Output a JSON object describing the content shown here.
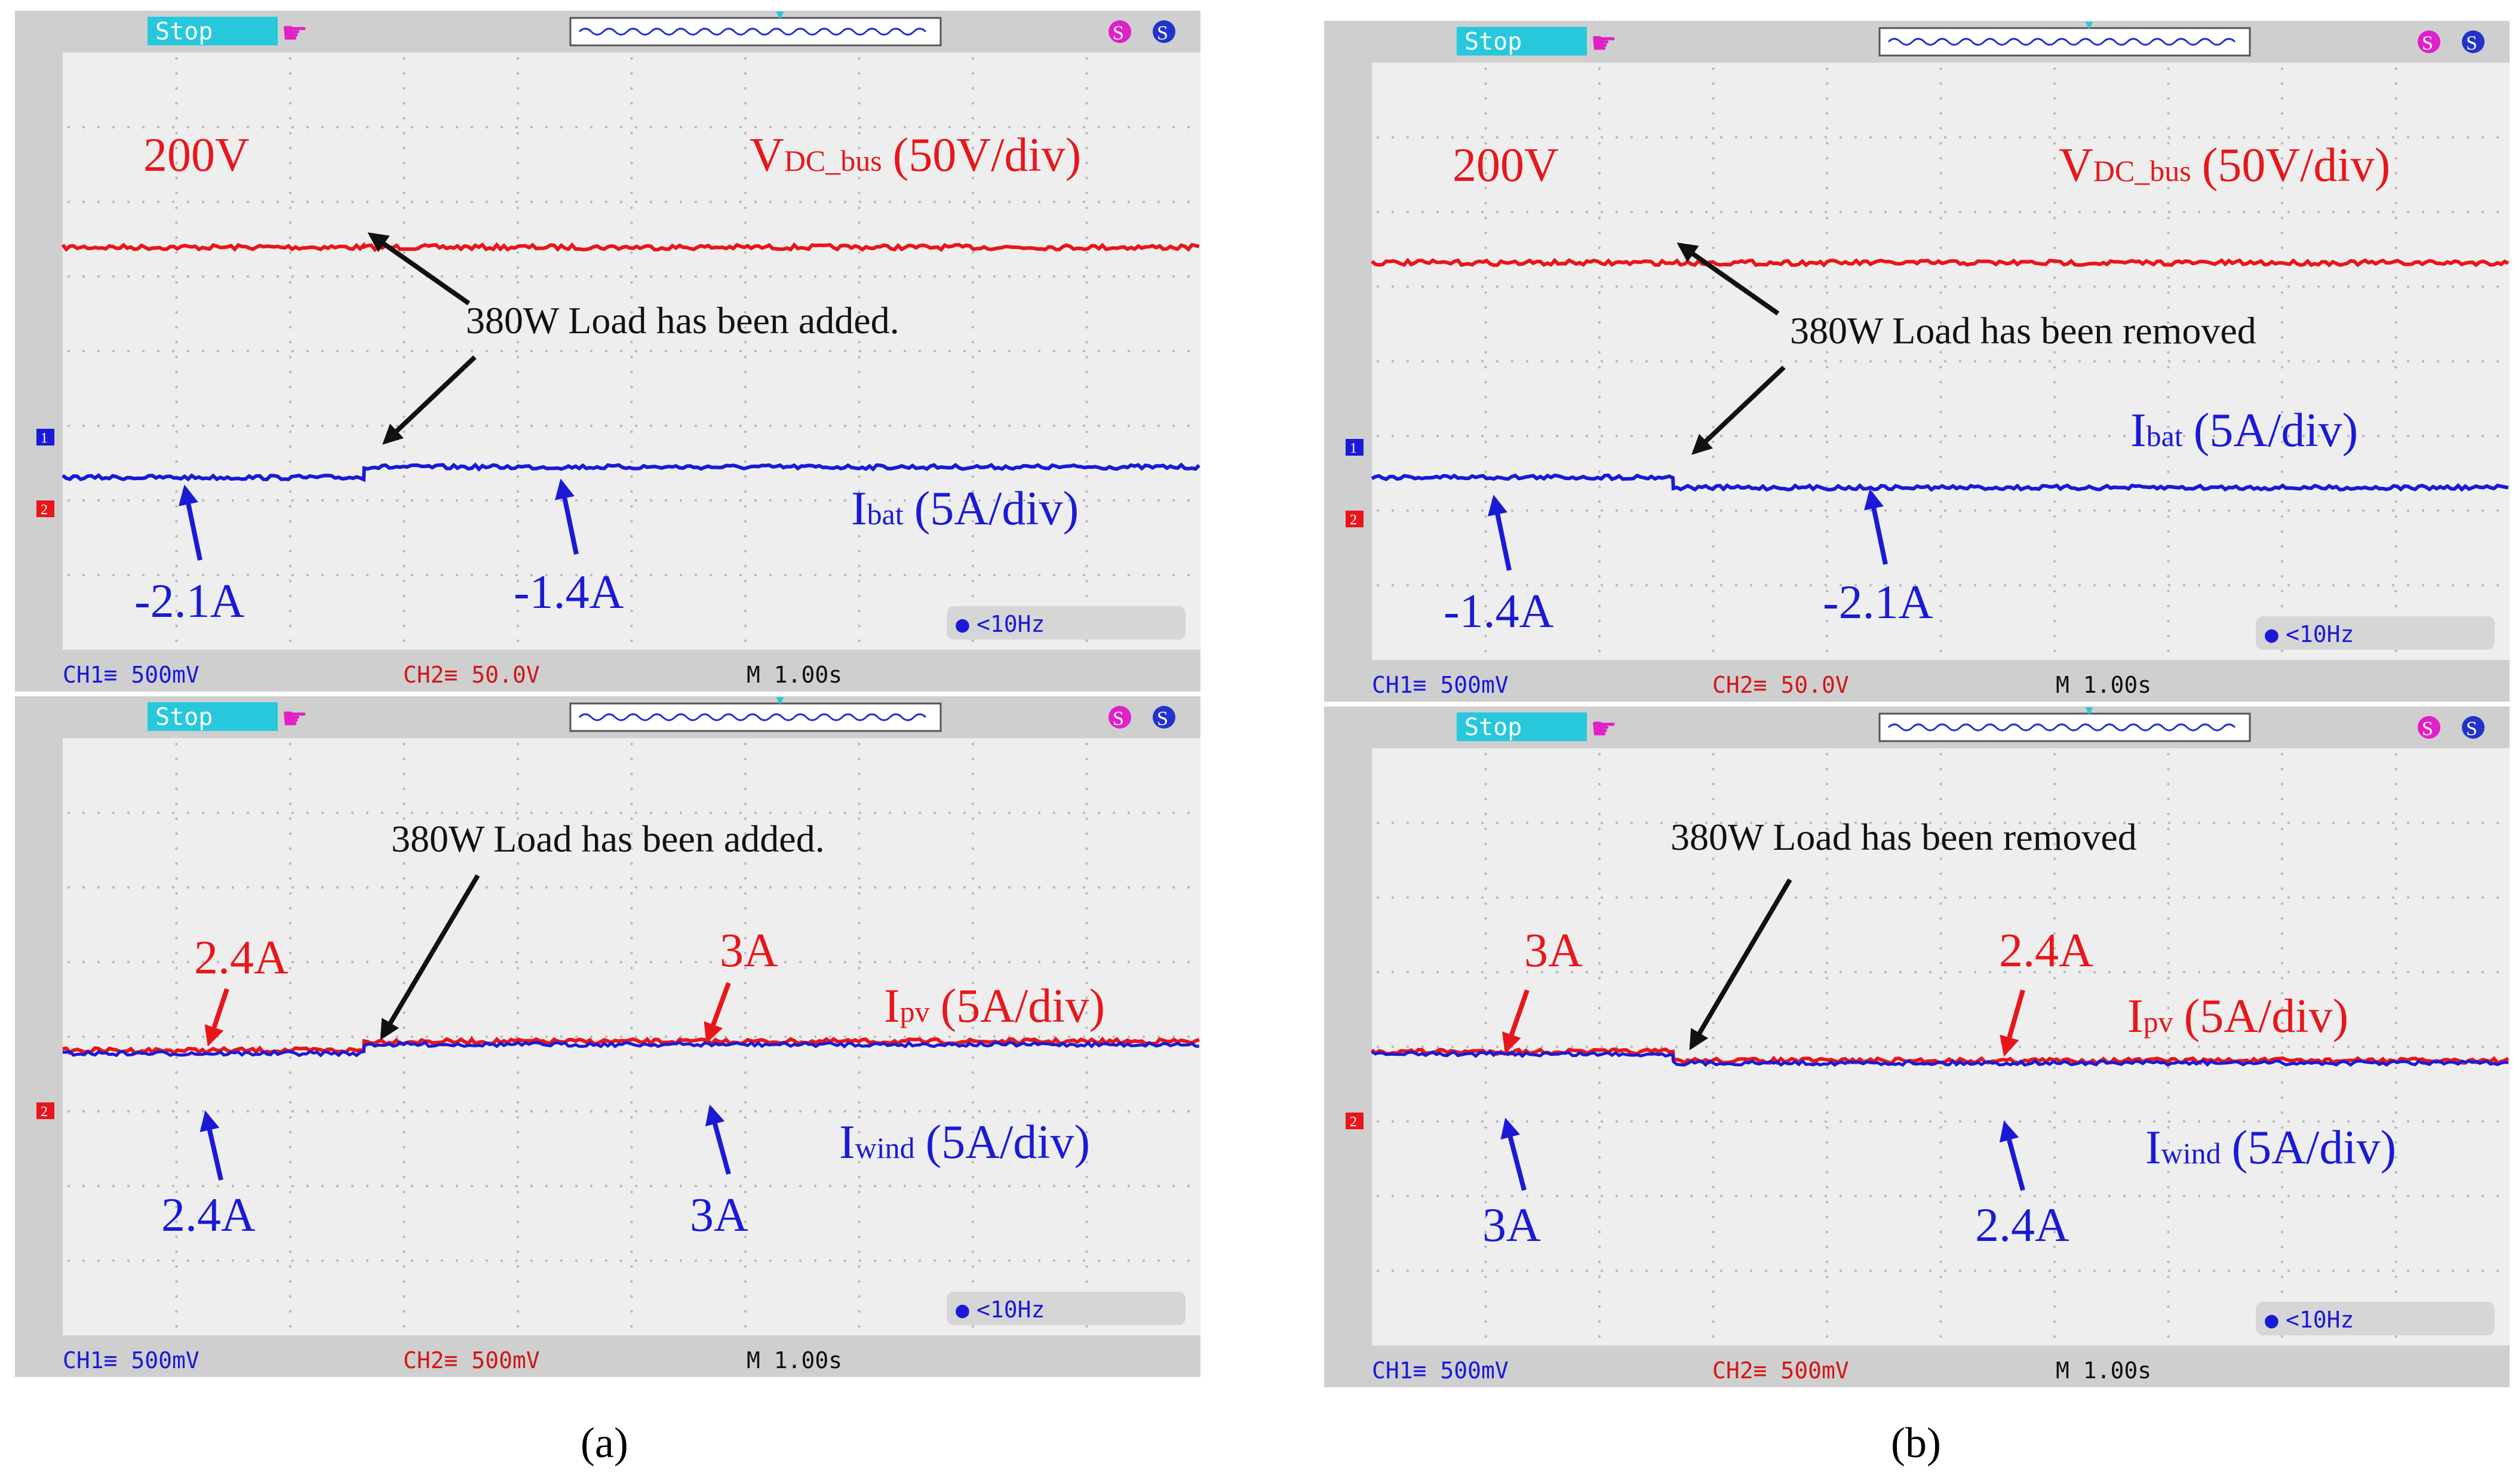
{
  "figure": {
    "panel_labels": [
      "(a)",
      "(b)"
    ],
    "scope_ui": {
      "status_label": "Stop",
      "meas_badge": "<10Hz",
      "timebase": "M 1.00s",
      "colors": {
        "ch_red": "#e8161b",
        "ch_blue": "#1a1ad6",
        "status_bg": "#27c8dc",
        "status_text": "#ffffff",
        "icon_magenta": "#e020c8",
        "grid_dot": "#b8b8b8",
        "screen_bg": "#eeeeee",
        "bezel_bg": "#cfcfcf",
        "footer_blue": "#1a1ad6",
        "footer_red": "#d01818",
        "footer_black": "#111111"
      }
    },
    "scopes": [
      {
        "id": "a-top",
        "footer": {
          "ch1": "CH1≡ 500mV",
          "ch2": "CH2≡ 50.0V",
          "time": "M 1.00s"
        },
        "annotations": {
          "level_label": "200V",
          "trace1_label_main": "V",
          "trace1_label_sub": "DC_bus",
          "trace1_label_scale": "(50V/div)",
          "event_text": "380W Load has been added.",
          "trace2_label_main": "I",
          "trace2_label_sub": "bat",
          "trace2_label_scale": "(5A/div)",
          "before_value": "-2.1A",
          "after_value": "-1.4A"
        }
      },
      {
        "id": "a-bottom",
        "footer": {
          "ch1": "CH1≡ 500mV",
          "ch2": "CH2≡ 500mV",
          "time": "M 1.00s"
        },
        "annotations": {
          "event_text": "380W Load has been added.",
          "trace1_label_main": "I",
          "trace1_label_sub": "pv",
          "trace1_label_scale": "(5A/div)",
          "trace2_label_main": "I",
          "trace2_label_sub": "wind",
          "trace2_label_scale": "(5A/div)",
          "red_before": "2.4A",
          "red_after": "3A",
          "blue_before": "2.4A",
          "blue_after": "3A"
        }
      },
      {
        "id": "b-top",
        "footer": {
          "ch1": "CH1≡ 500mV",
          "ch2": "CH2≡ 50.0V",
          "time": "M 1.00s"
        },
        "annotations": {
          "level_label": "200V",
          "trace1_label_main": "V",
          "trace1_label_sub": "DC_bus",
          "trace1_label_scale": "(50V/div)",
          "event_text": "380W Load has been removed",
          "trace2_label_main": "I",
          "trace2_label_sub": "bat",
          "trace2_label_scale": "(5A/div)",
          "before_value": "-1.4A",
          "after_value": "-2.1A"
        }
      },
      {
        "id": "b-bottom",
        "footer": {
          "ch1": "CH1≡ 500mV",
          "ch2": "CH2≡ 500mV",
          "time": "M 1.00s"
        },
        "annotations": {
          "event_text": "380W Load has been removed",
          "trace1_label_main": "I",
          "trace1_label_sub": "pv",
          "trace1_label_scale": "(5A/div)",
          "trace2_label_main": "I",
          "trace2_label_sub": "wind",
          "trace2_label_scale": "(5A/div)",
          "red_before": "3A",
          "red_after": "2.4A",
          "blue_before": "3A",
          "blue_after": "2.4A"
        }
      }
    ]
  },
  "chart_data": [
    {
      "type": "line",
      "panel": "(a) top",
      "title": "380W Load has been added.",
      "xlabel": "time (M 1.00s/div)",
      "x_range": [
        0,
        10
      ],
      "y_range_div": [
        -4,
        4
      ],
      "event_x": 2.65,
      "series": [
        {
          "name": "VDC_bus",
          "scale": "50V/div",
          "color": "red",
          "values": [
            {
              "x": [
                0,
                2.65
              ],
              "y": 200
            },
            {
              "x": [
                2.65,
                10
              ],
              "y": 200
            }
          ]
        },
        {
          "name": "Ibat",
          "scale": "5A/div",
          "color": "blue",
          "values": [
            {
              "x": [
                0,
                2.65
              ],
              "y": -2.1
            },
            {
              "x": [
                2.65,
                10
              ],
              "y": -1.4
            }
          ]
        }
      ]
    },
    {
      "type": "line",
      "panel": "(a) bottom",
      "title": "380W Load has been added.",
      "xlabel": "time (M 1.00s/div)",
      "x_range": [
        0,
        10
      ],
      "y_range_div": [
        -4,
        4
      ],
      "event_x": 2.65,
      "series": [
        {
          "name": "Ipv",
          "scale": "5A/div",
          "color": "red",
          "values": [
            {
              "x": [
                0,
                2.65
              ],
              "y": 2.4
            },
            {
              "x": [
                2.65,
                10
              ],
              "y": 3
            }
          ]
        },
        {
          "name": "Iwind",
          "scale": "5A/div",
          "color": "blue",
          "values": [
            {
              "x": [
                0,
                2.65
              ],
              "y": 2.4
            },
            {
              "x": [
                2.65,
                10
              ],
              "y": 3
            }
          ]
        }
      ]
    },
    {
      "type": "line",
      "panel": "(b) top",
      "title": "380W Load has been removed",
      "xlabel": "time (M 1.00s/div)",
      "x_range": [
        0,
        10
      ],
      "y_range_div": [
        -4,
        4
      ],
      "event_x": 2.65,
      "series": [
        {
          "name": "VDC_bus",
          "scale": "50V/div",
          "color": "red",
          "values": [
            {
              "x": [
                0,
                2.65
              ],
              "y": 200
            },
            {
              "x": [
                2.65,
                10
              ],
              "y": 200
            }
          ]
        },
        {
          "name": "Ibat",
          "scale": "5A/div",
          "color": "blue",
          "values": [
            {
              "x": [
                0,
                2.65
              ],
              "y": -1.4
            },
            {
              "x": [
                2.65,
                10
              ],
              "y": -2.1
            }
          ]
        }
      ]
    },
    {
      "type": "line",
      "panel": "(b) bottom",
      "title": "380W Load has been removed",
      "xlabel": "time (M 1.00s/div)",
      "x_range": [
        0,
        10
      ],
      "y_range_div": [
        -4,
        4
      ],
      "event_x": 2.65,
      "series": [
        {
          "name": "Ipv",
          "scale": "5A/div",
          "color": "red",
          "values": [
            {
              "x": [
                0,
                2.65
              ],
              "y": 3
            },
            {
              "x": [
                2.65,
                10
              ],
              "y": 2.4
            }
          ]
        },
        {
          "name": "Iwind",
          "scale": "5A/div",
          "color": "blue",
          "values": [
            {
              "x": [
                0,
                2.65
              ],
              "y": 3
            },
            {
              "x": [
                2.65,
                10
              ],
              "y": 2.4
            }
          ]
        }
      ]
    }
  ]
}
